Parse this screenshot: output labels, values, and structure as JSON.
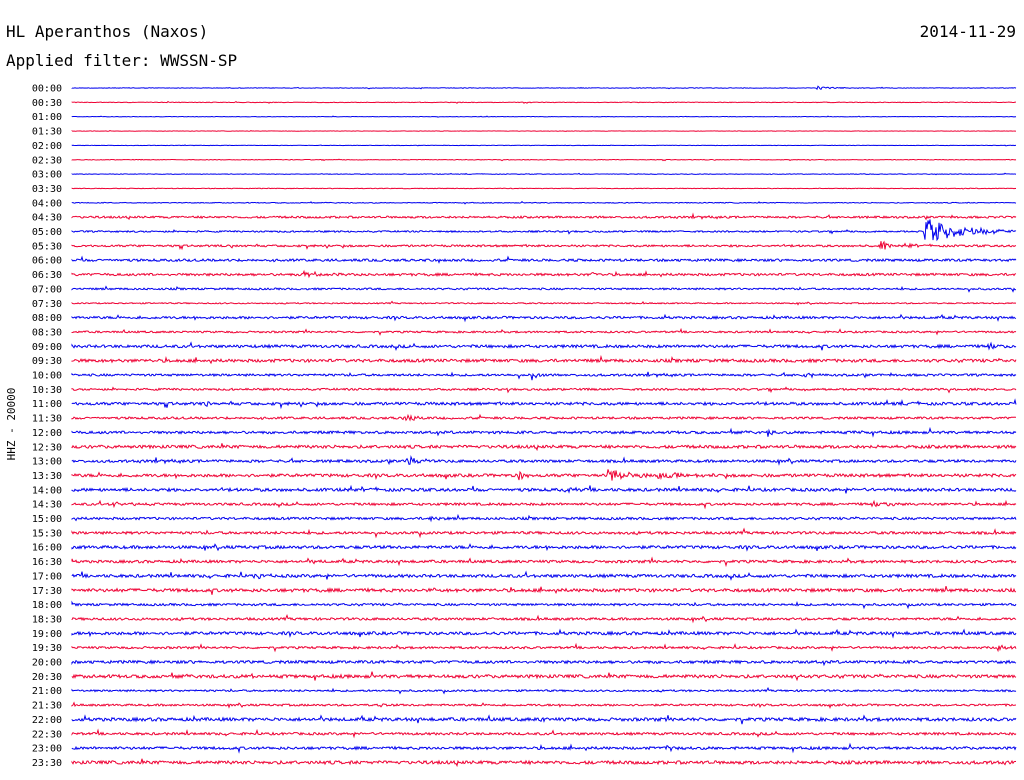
{
  "header": {
    "station": "HL Aperanthos (Naxos)",
    "date": "2014-11-29",
    "filter_label": "Applied filter: WWSSN-SP"
  },
  "side_label": "HHZ - 20000",
  "colors": {
    "even_rows": "#0000ee",
    "odd_rows": "#ee0033"
  },
  "chart_data": {
    "type": "line",
    "title": "HL Aperanthos (Naxos)",
    "subtitle": "Applied filter: WWSSN-SP",
    "ylabel": "HHZ - 20000",
    "xlabel": "",
    "x_unit": "minutes past row start",
    "xlim": [
      0,
      30
    ],
    "rows": [
      "00:00",
      "00:30",
      "01:00",
      "01:30",
      "02:00",
      "02:30",
      "03:00",
      "03:30",
      "04:00",
      "04:30",
      "05:00",
      "05:30",
      "06:00",
      "06:30",
      "07:00",
      "07:30",
      "08:00",
      "08:30",
      "09:00",
      "09:30",
      "10:00",
      "10:30",
      "11:00",
      "11:30",
      "12:00",
      "12:30",
      "13:00",
      "13:30",
      "14:00",
      "14:30",
      "15:00",
      "15:30",
      "16:00",
      "16:30",
      "17:00",
      "17:30",
      "18:00",
      "18:30",
      "19:00",
      "19:30",
      "20:00",
      "20:30",
      "21:00",
      "21:30",
      "22:00",
      "22:30",
      "23:00",
      "23:30"
    ],
    "noise": [
      0.3,
      0.3,
      0.2,
      0.2,
      0.2,
      0.3,
      0.3,
      0.3,
      0.4,
      1.0,
      0.8,
      1.0,
      1.2,
      1.2,
      0.9,
      0.6,
      1.2,
      0.9,
      1.4,
      1.5,
      1.1,
      1.0,
      1.4,
      1.1,
      1.3,
      1.5,
      1.3,
      1.5,
      1.5,
      1.2,
      1.2,
      1.3,
      1.5,
      1.3,
      1.5,
      1.6,
      1.1,
      1.2,
      1.5,
      1.1,
      1.4,
      1.6,
      0.9,
      1.0,
      1.6,
      1.2,
      1.3,
      1.6
    ],
    "events": [
      {
        "row": "00:00",
        "t": 23.7,
        "amp": 2,
        "dur": 0.8
      },
      {
        "row": "05:00",
        "t": 27.1,
        "amp": 14,
        "dur": 1.8
      },
      {
        "row": "05:30",
        "t": 25.7,
        "amp": 5,
        "dur": 0.3
      },
      {
        "row": "05:30",
        "t": 26.6,
        "amp": 4,
        "dur": 0.2
      },
      {
        "row": "06:30",
        "t": 7.3,
        "amp": 3,
        "dur": 1.1
      },
      {
        "row": "06:30",
        "t": 16.5,
        "amp": 3,
        "dur": 0.2
      },
      {
        "row": "09:00",
        "t": 29.1,
        "amp": 4,
        "dur": 0.5
      },
      {
        "row": "10:00",
        "t": 14.6,
        "amp": 6,
        "dur": 0.3
      },
      {
        "row": "10:00",
        "t": 23.2,
        "amp": 3,
        "dur": 0.6
      },
      {
        "row": "11:00",
        "t": 4.2,
        "amp": 3,
        "dur": 0.4
      },
      {
        "row": "11:30",
        "t": 10.5,
        "amp": 3,
        "dur": 0.6
      },
      {
        "row": "12:00",
        "t": 22.1,
        "amp": 4,
        "dur": 0.2
      },
      {
        "row": "12:00",
        "t": 24.8,
        "amp": 4,
        "dur": 0.2
      },
      {
        "row": "13:00",
        "t": 10.6,
        "amp": 7,
        "dur": 0.5
      },
      {
        "row": "13:30",
        "t": 14.2,
        "amp": 6,
        "dur": 0.2
      },
      {
        "row": "13:30",
        "t": 17.0,
        "amp": 7,
        "dur": 0.8
      },
      {
        "row": "13:30",
        "t": 18.6,
        "amp": 4,
        "dur": 1.2
      },
      {
        "row": "14:00",
        "t": 15.7,
        "amp": 4,
        "dur": 0.3
      },
      {
        "row": "14:00",
        "t": 9.0,
        "amp": 3,
        "dur": 0.2
      },
      {
        "row": "14:30",
        "t": 25.4,
        "amp": 3,
        "dur": 1.2
      },
      {
        "row": "14:30",
        "t": 1.2,
        "amp": 2,
        "dur": 1.0
      },
      {
        "row": "15:00",
        "t": 11.4,
        "amp": 3,
        "dur": 0.3
      },
      {
        "row": "16:30",
        "t": 7.6,
        "amp": 3,
        "dur": 0.2
      },
      {
        "row": "17:00",
        "t": 5.8,
        "amp": 3,
        "dur": 0.4
      },
      {
        "row": "17:30",
        "t": 11.5,
        "amp": 5,
        "dur": 0.1
      },
      {
        "row": "19:30",
        "t": 29.4,
        "amp": 4,
        "dur": 0.4
      },
      {
        "row": "20:30",
        "t": 5.6,
        "amp": 4,
        "dur": 0.4
      },
      {
        "row": "20:30",
        "t": 23.0,
        "amp": 3,
        "dur": 0.2
      },
      {
        "row": "21:30",
        "t": 9.6,
        "amp": 3,
        "dur": 0.4
      },
      {
        "row": "22:00",
        "t": 14.9,
        "amp": 4,
        "dur": 0.1
      },
      {
        "row": "23:00",
        "t": 18.9,
        "amp": 3,
        "dur": 0.4
      }
    ]
  }
}
